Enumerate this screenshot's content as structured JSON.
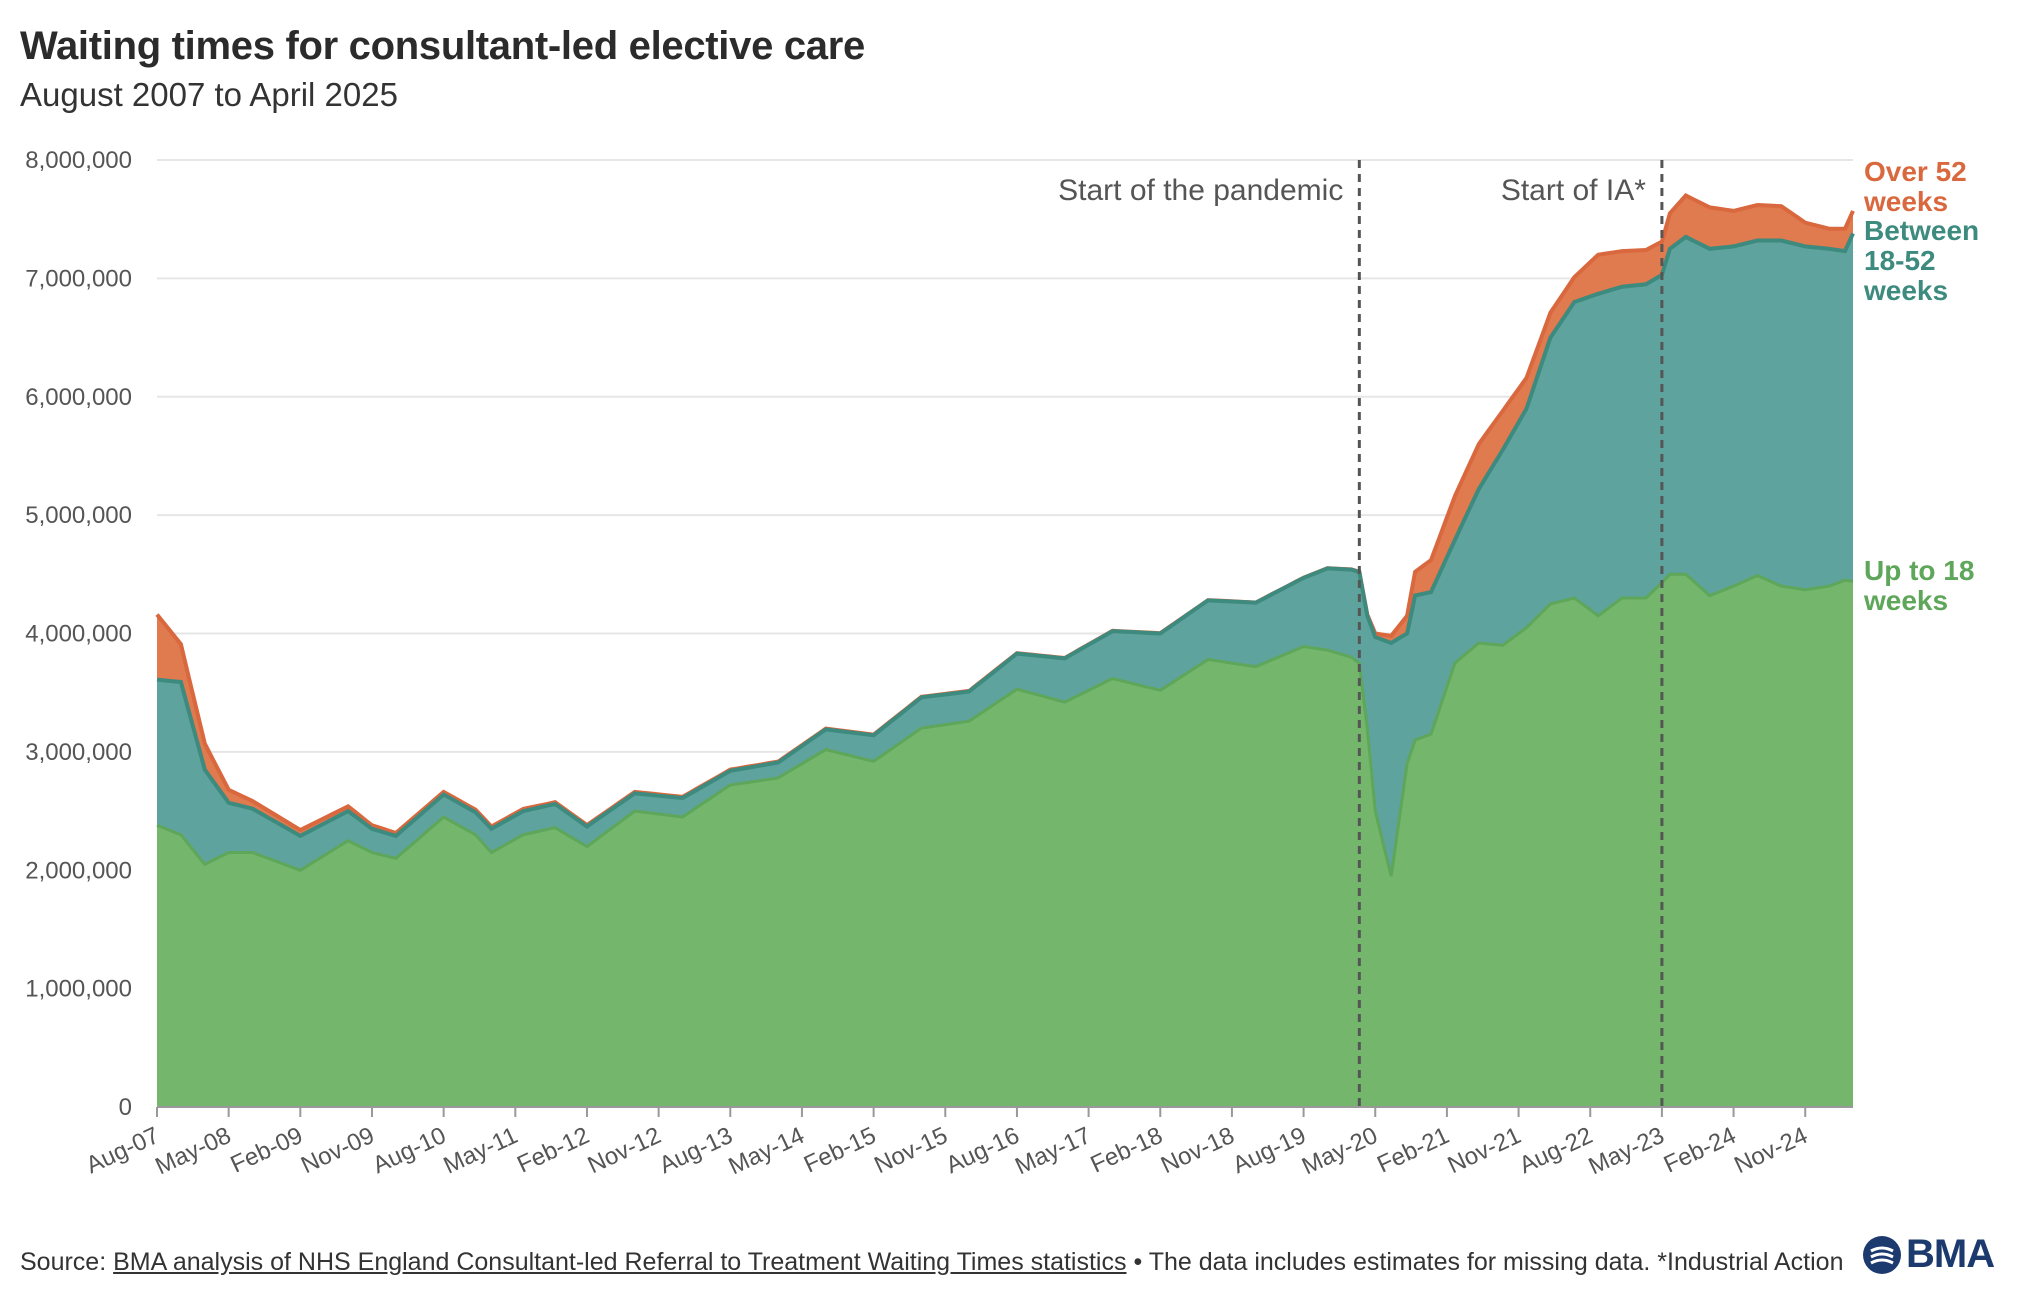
{
  "title": "Waiting times for consultant-led elective care",
  "subtitle": "August 2007 to April 2025",
  "colors": {
    "up_to_18": "#74b66c",
    "up_to_18_line": "#5ea65a",
    "between_18_52": "#5ea39e",
    "between_line": "#3d8a7e",
    "over_52": "#e07a4f",
    "over_52_line": "#d9683e",
    "over_52_label": "#d9683e",
    "between_label": "#3d8a7e",
    "up_to_18_label": "#5ea65a",
    "grid": "#e6e6e6",
    "annotation_line": "#555555",
    "logo": "#1d3a6e"
  },
  "footer": {
    "source_prefix": "Source: ",
    "source_link": "BMA analysis of NHS England Consultant-led Referral to Treatment Waiting Times statistics",
    "note": " • The data includes estimates for missing data. *Industrial Action"
  },
  "logo": {
    "text": "BMA",
    "icon": "bma-logo-icon"
  },
  "chart_data": {
    "type": "area",
    "stacked": true,
    "title": "Waiting times for consultant-led elective care",
    "subtitle": "August 2007 to April 2025",
    "xlabel": "",
    "ylabel": "",
    "ylim": [
      0,
      8000000
    ],
    "y_ticks": [
      0,
      1000000,
      2000000,
      3000000,
      4000000,
      5000000,
      6000000,
      7000000,
      8000000
    ],
    "y_tick_labels": [
      "0",
      "1,000,000",
      "2,000,000",
      "3,000,000",
      "4,000,000",
      "5,000,000",
      "6,000,000",
      "7,000,000",
      "8,000,000"
    ],
    "x_start": "Aug-07",
    "x_end": "Apr-25",
    "x_ticks": [
      {
        "label": "Aug-07",
        "index": 0
      },
      {
        "label": "May-08",
        "index": 9
      },
      {
        "label": "Feb-09",
        "index": 18
      },
      {
        "label": "Nov-09",
        "index": 27
      },
      {
        "label": "Aug-10",
        "index": 36
      },
      {
        "label": "May-11",
        "index": 45
      },
      {
        "label": "Feb-12",
        "index": 54
      },
      {
        "label": "Nov-12",
        "index": 63
      },
      {
        "label": "Aug-13",
        "index": 72
      },
      {
        "label": "May-14",
        "index": 81
      },
      {
        "label": "Feb-15",
        "index": 90
      },
      {
        "label": "Nov-15",
        "index": 99
      },
      {
        "label": "Aug-16",
        "index": 108
      },
      {
        "label": "May-17",
        "index": 117
      },
      {
        "label": "Feb-18",
        "index": 126
      },
      {
        "label": "Nov-18",
        "index": 135
      },
      {
        "label": "Aug-19",
        "index": 144
      },
      {
        "label": "May-20",
        "index": 153
      },
      {
        "label": "Feb-21",
        "index": 162
      },
      {
        "label": "Nov-21",
        "index": 171
      },
      {
        "label": "Aug-22",
        "index": 180
      },
      {
        "label": "May-23",
        "index": 189
      },
      {
        "label": "Feb-24",
        "index": 198
      },
      {
        "label": "Nov-24",
        "index": 207
      }
    ],
    "annotations": [
      {
        "label": "Start of the pandemic",
        "index": 151
      },
      {
        "label": "Start of IA*",
        "index": 189
      }
    ],
    "anchor_months": [
      0,
      3,
      6,
      9,
      12,
      18,
      24,
      27,
      30,
      36,
      40,
      42,
      46,
      50,
      54,
      60,
      66,
      72,
      78,
      84,
      90,
      96,
      102,
      108,
      114,
      120,
      126,
      132,
      138,
      144,
      147,
      150,
      151,
      152,
      153,
      155,
      157,
      158,
      160,
      163,
      166,
      169,
      172,
      175,
      178,
      181,
      184,
      187,
      189,
      190,
      192,
      195,
      198,
      201,
      204,
      207,
      210,
      212,
      213
    ],
    "series": [
      {
        "name": "Up to 18 weeks",
        "label_lines": [
          "Up to 18",
          "weeks"
        ],
        "values": [
          2380000,
          2300000,
          2050000,
          2150000,
          2150000,
          2000000,
          2250000,
          2150000,
          2100000,
          2450000,
          2300000,
          2150000,
          2300000,
          2360000,
          2200000,
          2500000,
          2450000,
          2720000,
          2780000,
          3020000,
          2920000,
          3200000,
          3260000,
          3530000,
          3420000,
          3620000,
          3520000,
          3780000,
          3720000,
          3890000,
          3860000,
          3800000,
          3750000,
          3200000,
          2500000,
          1950000,
          2900000,
          3100000,
          3150000,
          3750000,
          3920000,
          3900000,
          4050000,
          4250000,
          4300000,
          4150000,
          4300000,
          4300000,
          4430000,
          4500000,
          4500000,
          4320000,
          4400000,
          4490000,
          4400000,
          4370000,
          4400000,
          4450000,
          4440000
        ]
      },
      {
        "name": "Between 18-52 weeks",
        "label_lines": [
          "Between",
          "18-52",
          "weeks"
        ],
        "values": [
          1230000,
          1290000,
          800000,
          420000,
          370000,
          290000,
          250000,
          200000,
          190000,
          190000,
          190000,
          200000,
          200000,
          200000,
          170000,
          150000,
          160000,
          120000,
          130000,
          170000,
          220000,
          260000,
          250000,
          300000,
          370000,
          400000,
          480000,
          500000,
          540000,
          580000,
          690000,
          740000,
          770000,
          950000,
          1470000,
          1970000,
          1100000,
          1220000,
          1200000,
          1040000,
          1300000,
          1650000,
          1850000,
          2250000,
          2500000,
          2720000,
          2630000,
          2650000,
          2600000,
          2750000,
          2850000,
          2930000,
          2870000,
          2830000,
          2920000,
          2900000,
          2850000,
          2780000,
          2940000
        ]
      },
      {
        "name": "Over 52 weeks",
        "label_lines": [
          "Over 52",
          "weeks"
        ],
        "values": [
          550000,
          320000,
          220000,
          110000,
          65000,
          50000,
          40000,
          30000,
          25000,
          22000,
          22000,
          20000,
          18000,
          15000,
          12000,
          12000,
          10000,
          10000,
          8000,
          7000,
          6000,
          5000,
          5000,
          4000,
          3000,
          2500,
          2500,
          2500,
          2000,
          1500,
          1500,
          1500,
          1600,
          10000,
          30000,
          60000,
          150000,
          200000,
          270000,
          370000,
          380000,
          330000,
          260000,
          210000,
          210000,
          330000,
          300000,
          290000,
          280000,
          300000,
          350000,
          350000,
          300000,
          300000,
          290000,
          200000,
          170000,
          190000,
          190000
        ]
      }
    ]
  }
}
